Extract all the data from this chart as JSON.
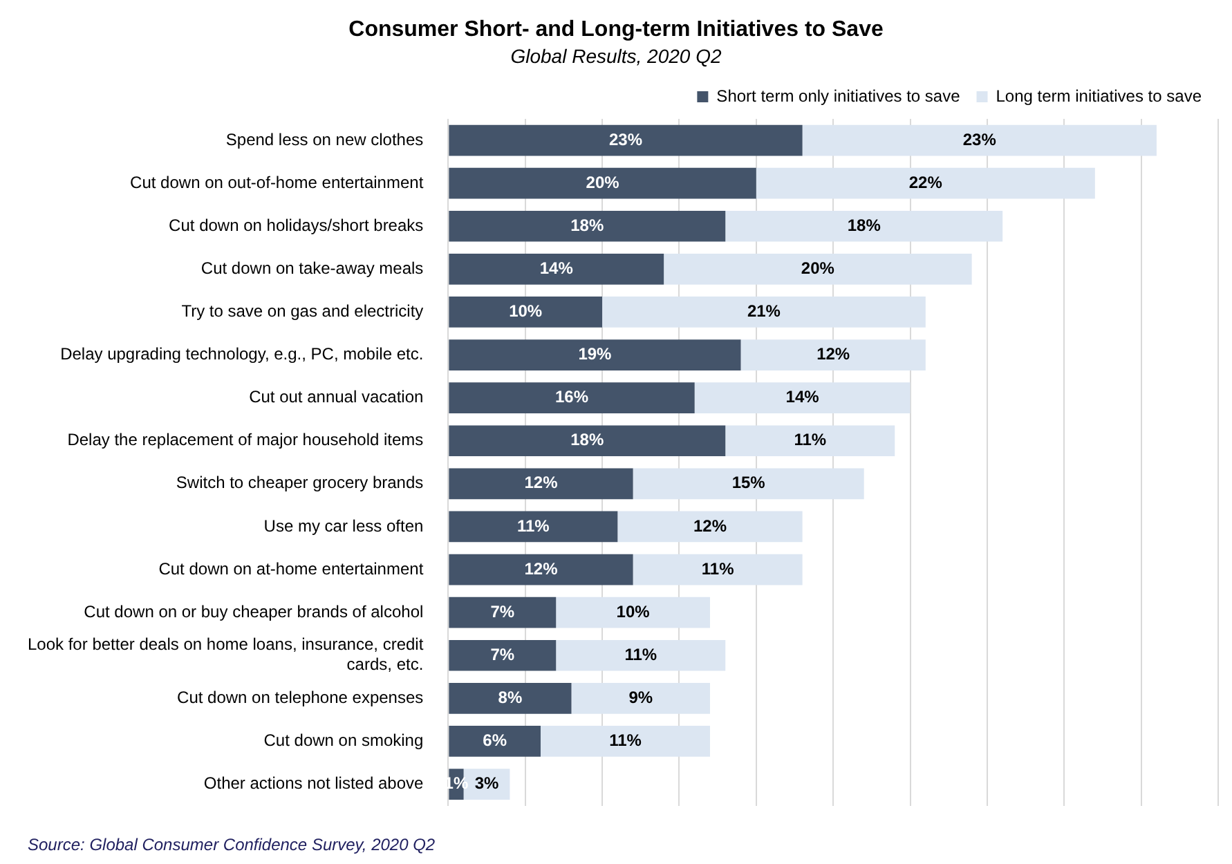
{
  "chart_data": {
    "type": "bar",
    "orientation": "horizontal",
    "stacked": true,
    "title": "Consumer Short- and Long-term Initiatives to Save",
    "subtitle": "Global Results, 2020 Q2",
    "categories": [
      "Spend less on new clothes",
      "Cut down on out-of-home entertainment",
      "Cut down on holidays/short breaks",
      "Cut down on take-away meals",
      "Try to save on gas and electricity",
      "Delay upgrading technology, e.g., PC, mobile etc.",
      "Cut out annual vacation",
      "Delay the replacement of major household items",
      "Switch to cheaper grocery brands",
      "Use my car less often",
      "Cut down on at-home entertainment",
      "Cut down on or buy cheaper brands of alcohol",
      "Look for better deals on home loans, insurance, credit cards, etc.",
      "Cut down on telephone expenses",
      "Cut down on smoking",
      "Other actions not listed above"
    ],
    "series": [
      {
        "name": "Short term only initiatives to save",
        "color": "#44546a",
        "values": [
          23,
          20,
          18,
          14,
          10,
          19,
          16,
          18,
          12,
          11,
          12,
          7,
          7,
          8,
          6,
          1
        ],
        "value_labels": [
          "23%",
          "20%",
          "18%",
          "14%",
          "10%",
          "19%",
          "16%",
          "18%",
          "12%",
          "11%",
          "12%",
          "7%",
          "7%",
          "8%",
          "6%",
          "1%"
        ]
      },
      {
        "name": "Long term initiatives to save",
        "color": "#dce6f2",
        "values": [
          23,
          22,
          18,
          20,
          21,
          12,
          14,
          11,
          15,
          12,
          11,
          10,
          11,
          9,
          11,
          3
        ],
        "value_labels": [
          "23%",
          "22%",
          "18%",
          "20%",
          "21%",
          "12%",
          "14%",
          "11%",
          "15%",
          "12%",
          "11%",
          "10%",
          "11%",
          "9%",
          "11%",
          "3%"
        ]
      }
    ],
    "xlim": [
      0,
      50
    ],
    "xticks": [
      {
        "value": 0,
        "label": null
      },
      {
        "value": 5,
        "label": null
      },
      {
        "value": 10,
        "label": null
      },
      {
        "value": 15,
        "label": null
      },
      {
        "value": 20,
        "label": null
      },
      {
        "value": 25,
        "label": null
      },
      {
        "value": 30,
        "label": null
      },
      {
        "value": 35,
        "label": null
      },
      {
        "value": 40,
        "label": null
      },
      {
        "value": 45,
        "label": null
      },
      {
        "value": 50,
        "label": null
      }
    ],
    "grid": "x",
    "legend": "top right",
    "tick_labels": "y",
    "annotations": [
      "Source: Global Consumer Confidence Survey, 2020 Q2"
    ]
  }
}
